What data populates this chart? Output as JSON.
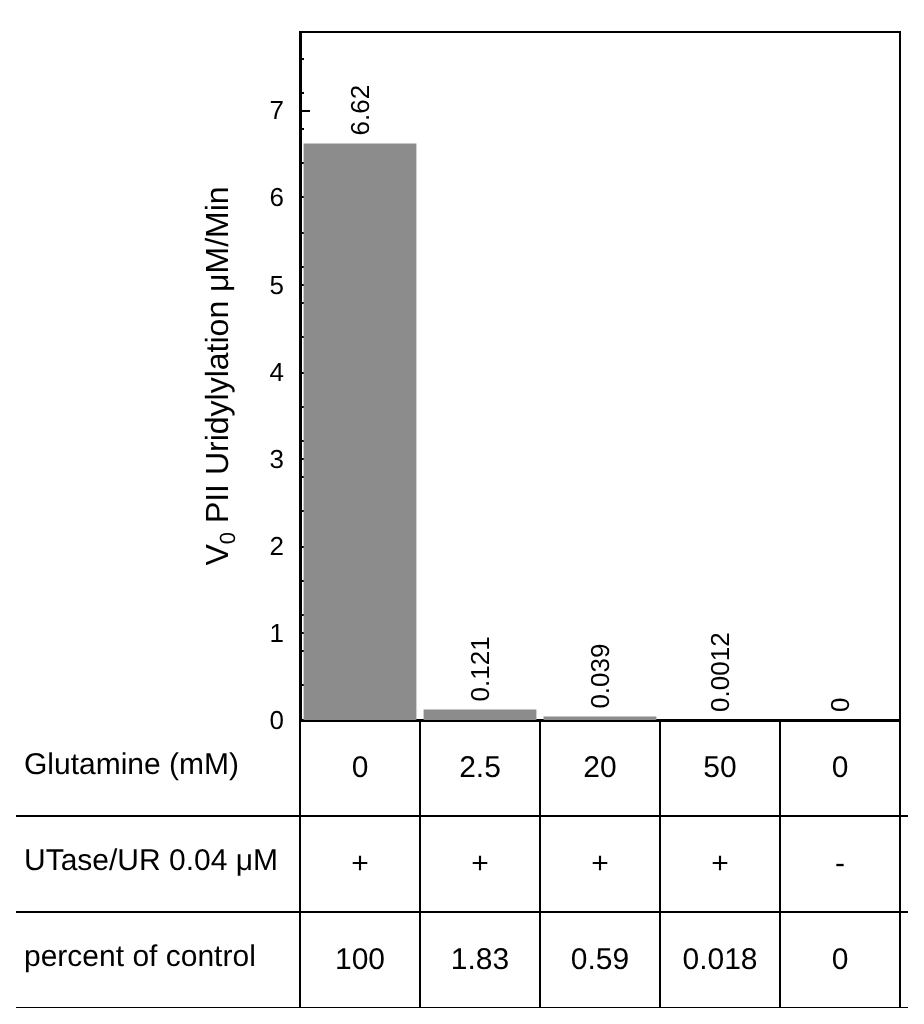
{
  "chart_data": {
    "type": "bar",
    "ylabel": "V$_{0}$ PII Uridylylation μM/Min",
    "categories": [
      "0\n+\n100",
      "2.5\n+\n1.83",
      "20\n+\n0.59",
      "50\n+\n0.018",
      "0\n-\n0"
    ],
    "values": [
      6.62,
      0.121,
      0.039,
      0.0012,
      0
    ],
    "color": "#8c8c8c",
    "ylim": [
      0,
      7.9
    ],
    "yticks": [
      0,
      1,
      2,
      3,
      4,
      5,
      6,
      7
    ],
    "data_labels": true,
    "annotations": [
      "Glutamine (mM)",
      "UTase/UR 0.04 μM",
      "percent of control"
    ]
  }
}
